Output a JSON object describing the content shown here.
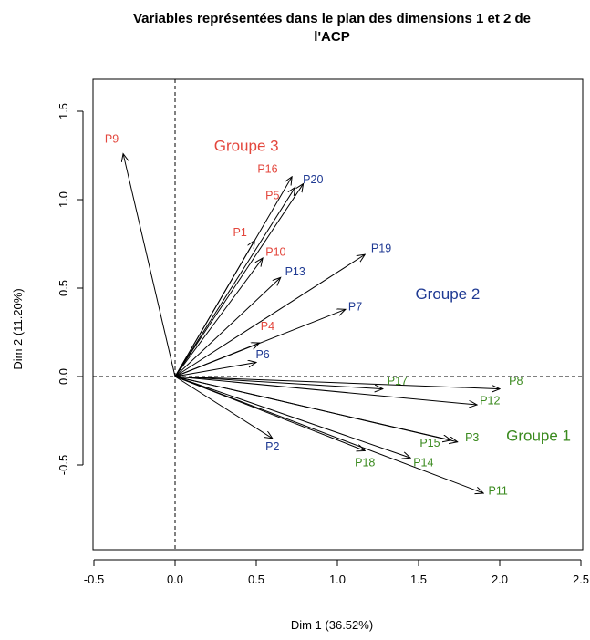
{
  "chart_data": {
    "type": "scatter",
    "subtype": "biplot-arrows",
    "title_line1": "Variables représentées dans le plan des dimensions 1 et 2 de",
    "title_line2": "l'ACP",
    "xlabel": "Dim 1 (36.52%)",
    "ylabel": "Dim 2 (11.20%)",
    "xlim": [
      -0.5,
      2.5
    ],
    "ylim": [
      -1.0,
      1.7
    ],
    "xticks": [
      -0.5,
      0.0,
      0.5,
      1.0,
      1.5,
      2.0,
      2.5
    ],
    "xtick_labels": [
      "-0.5",
      "0.0",
      "0.5",
      "1.0",
      "1.5",
      "2.0",
      "2.5"
    ],
    "yticks": [
      -0.5,
      0.0,
      0.5,
      1.0,
      1.5
    ],
    "ytick_labels": [
      "-0.5",
      "0.0",
      "0.5",
      "1.0",
      "1.5"
    ],
    "grid": false,
    "reference_lines": {
      "x": 0.0,
      "y": 0.0,
      "style": "dashed"
    },
    "colors": {
      "group1": "#3a8a1e",
      "group2": "#1f3a93",
      "group3": "#e3463c"
    },
    "groups": [
      {
        "name": "Groupe 1",
        "color_key": "group1",
        "x": 2.04,
        "y": -0.34
      },
      {
        "name": "Groupe 2",
        "color_key": "group2",
        "x": 1.48,
        "y": 0.46
      },
      {
        "name": "Groupe 3",
        "color_key": "group3",
        "x": 0.24,
        "y": 1.3
      }
    ],
    "variables": [
      {
        "name": "P9",
        "group": "group3",
        "x": -0.32,
        "y": 1.26,
        "lx": -0.39,
        "ly": 1.34
      },
      {
        "name": "P16",
        "group": "group3",
        "x": 0.72,
        "y": 1.13,
        "lx": 0.57,
        "ly": 1.17
      },
      {
        "name": "P5",
        "group": "group3",
        "x": 0.74,
        "y": 1.07,
        "lx": 0.6,
        "ly": 1.02
      },
      {
        "name": "P1",
        "group": "group3",
        "x": 0.49,
        "y": 0.77,
        "lx": 0.4,
        "ly": 0.81
      },
      {
        "name": "P10",
        "group": "group3",
        "x": 0.54,
        "y": 0.67,
        "lx": 0.62,
        "ly": 0.7
      },
      {
        "name": "P4",
        "group": "group3",
        "x": 0.52,
        "y": 0.19,
        "lx": 0.57,
        "ly": 0.28
      },
      {
        "name": "P20",
        "group": "group2",
        "x": 0.79,
        "y": 1.09,
        "lx": 0.85,
        "ly": 1.11
      },
      {
        "name": "P19",
        "group": "group2",
        "x": 1.17,
        "y": 0.69,
        "lx": 1.27,
        "ly": 0.72
      },
      {
        "name": "P13",
        "group": "group2",
        "x": 0.65,
        "y": 0.56,
        "lx": 0.74,
        "ly": 0.59
      },
      {
        "name": "P7",
        "group": "group2",
        "x": 1.05,
        "y": 0.38,
        "lx": 1.11,
        "ly": 0.39
      },
      {
        "name": "P6",
        "group": "group2",
        "x": 0.5,
        "y": 0.08,
        "lx": 0.54,
        "ly": 0.12
      },
      {
        "name": "P2",
        "group": "group2",
        "x": 0.6,
        "y": -0.35,
        "lx": 0.6,
        "ly": -0.4
      },
      {
        "name": "P17",
        "group": "group1",
        "x": 1.28,
        "y": -0.07,
        "lx": 1.37,
        "ly": -0.03
      },
      {
        "name": "P8",
        "group": "group1",
        "x": 2.0,
        "y": -0.07,
        "lx": 2.1,
        "ly": -0.03
      },
      {
        "name": "P12",
        "group": "group1",
        "x": 1.86,
        "y": -0.16,
        "lx": 1.94,
        "ly": -0.14
      },
      {
        "name": "P3",
        "group": "group1",
        "x": 1.74,
        "y": -0.37,
        "lx": 1.83,
        "ly": -0.35
      },
      {
        "name": "P15",
        "group": "group1",
        "x": 1.7,
        "y": -0.36,
        "lx": 1.57,
        "ly": -0.38
      },
      {
        "name": "P14",
        "group": "group1",
        "x": 1.45,
        "y": -0.46,
        "lx": 1.53,
        "ly": -0.49
      },
      {
        "name": "P18",
        "group": "group1",
        "x": 1.17,
        "y": -0.42,
        "lx": 1.17,
        "ly": -0.49
      },
      {
        "name": "P11",
        "group": "group1",
        "x": 1.9,
        "y": -0.66,
        "lx": 1.99,
        "ly": -0.65
      }
    ]
  }
}
